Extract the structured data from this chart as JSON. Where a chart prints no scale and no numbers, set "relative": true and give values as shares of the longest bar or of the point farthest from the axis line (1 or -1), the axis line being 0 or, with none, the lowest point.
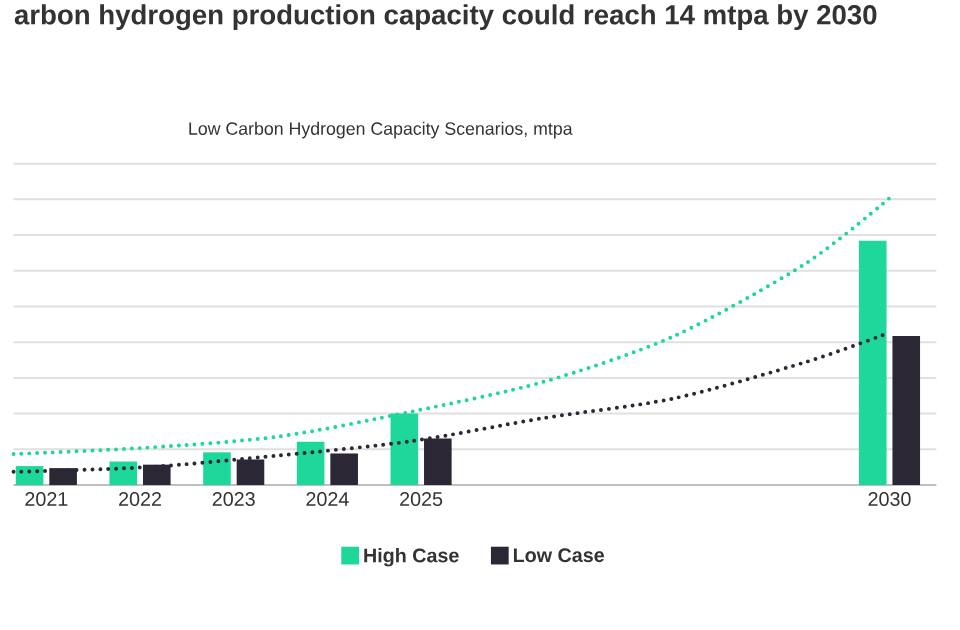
{
  "chart_data": {
    "type": "bar",
    "title": "arbon hydrogen production capacity could reach 14 mtpa by 2030",
    "subtitle": "Low Carbon Hydrogen Capacity Scenarios, mtpa",
    "x": [
      2021,
      2022,
      2023,
      2024,
      2025,
      2030
    ],
    "xlim": [
      2020.65,
      2030.5
    ],
    "xticks": [
      2021,
      2022,
      2023,
      2024,
      2025,
      2030
    ],
    "relative": true,
    "grid": "y",
    "tick_labels": "x",
    "legend": "bottom",
    "series": [
      {
        "name": "High Case",
        "color": "#1ed79b",
        "values": [
          0.066,
          0.082,
          0.114,
          0.151,
          0.249,
          0.851
        ]
      },
      {
        "name": "Low Case",
        "color": "#2b2735",
        "values": [
          0.059,
          0.071,
          0.089,
          0.11,
          0.162,
          0.519
        ]
      },
      {
        "type": "line",
        "line_style": "dotted",
        "color": "#1ed79b",
        "x": [
          2020.65,
          2022.06,
          2023.48,
          2024.9,
          2026.3,
          2027.7,
          2029.1,
          2030
        ],
        "values": [
          0.108,
          0.13,
          0.169,
          0.256,
          0.359,
          0.519,
          0.771,
          1.0
        ]
      },
      {
        "type": "line",
        "line_style": "dotted",
        "color": "#2b2735",
        "x": [
          2020.65,
          2022.06,
          2023.48,
          2024.9,
          2026.3,
          2027.7,
          2029.1,
          2030
        ],
        "values": [
          0.046,
          0.062,
          0.103,
          0.153,
          0.233,
          0.302,
          0.428,
          0.531
        ]
      }
    ]
  }
}
